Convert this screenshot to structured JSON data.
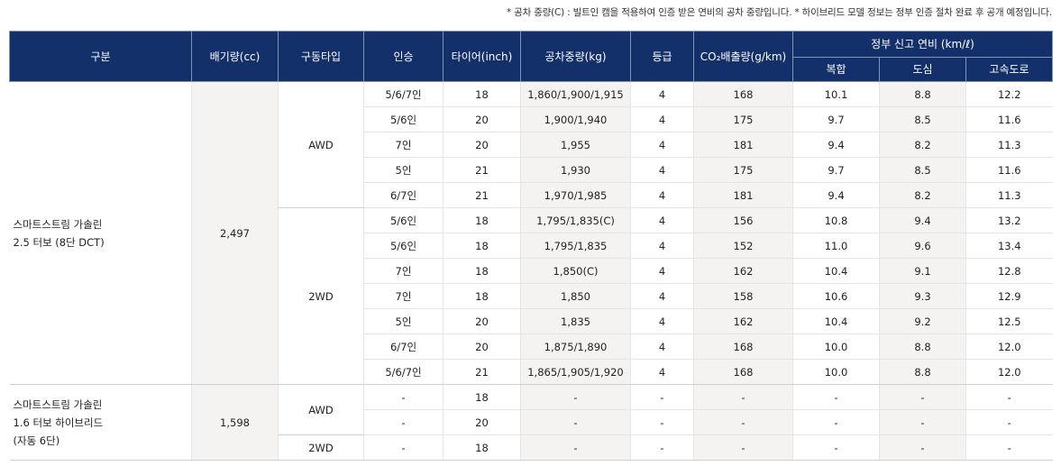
{
  "note": "* 공차 중량(C) : 빌트인 캠을 적용하여 인증 받은 연비의 공차 중량입니다. * 하이브리드 모델 정보는 정부 인증 절차 완료 후 공개 예정입니다.",
  "colors": {
    "header_bg": "#13306a",
    "shaded_column": "#f5f3f1"
  },
  "headers": {
    "category": "구분",
    "displacement": "배기량(cc)",
    "drive": "구동타입",
    "seats": "인승",
    "tire": "타이어(inch)",
    "weight": "공차중량(kg)",
    "grade": "등급",
    "co2": "CO₂배출량(g/km)",
    "fuel_group": "정부 신고 연비 (km/ℓ)",
    "combined": "복합",
    "city": "도심",
    "highway": "고속도로"
  },
  "groups": [
    {
      "type_lines": [
        "스마트스트림 가솔린",
        "2.5 터보 (8단 DCT)"
      ],
      "displacement": "2,497",
      "drives": [
        {
          "drive": "AWD",
          "rows": [
            [
              "5/6/7인",
              "18",
              "1,860/1,900/1,915",
              "4",
              "168",
              "10.1",
              "8.8",
              "12.2"
            ],
            [
              "5/6인",
              "20",
              "1,900/1,940",
              "4",
              "175",
              "9.7",
              "8.5",
              "11.6"
            ],
            [
              "7인",
              "20",
              "1,955",
              "4",
              "181",
              "9.4",
              "8.2",
              "11.3"
            ],
            [
              "5인",
              "21",
              "1,930",
              "4",
              "175",
              "9.7",
              "8.5",
              "11.6"
            ],
            [
              "6/7인",
              "21",
              "1,970/1,985",
              "4",
              "181",
              "9.4",
              "8.2",
              "11.3"
            ]
          ]
        },
        {
          "drive": "2WD",
          "rows": [
            [
              "5/6인",
              "18",
              "1,795/1,835(C)",
              "4",
              "156",
              "10.8",
              "9.4",
              "13.2"
            ],
            [
              "5/6인",
              "18",
              "1,795/1,835",
              "4",
              "152",
              "11.0",
              "9.6",
              "13.4"
            ],
            [
              "7인",
              "18",
              "1,850(C)",
              "4",
              "162",
              "10.4",
              "9.1",
              "12.8"
            ],
            [
              "7인",
              "18",
              "1,850",
              "4",
              "158",
              "10.6",
              "9.3",
              "12.9"
            ],
            [
              "5인",
              "20",
              "1,835",
              "4",
              "162",
              "10.4",
              "9.2",
              "12.5"
            ],
            [
              "6/7인",
              "20",
              "1,875/1,890",
              "4",
              "168",
              "10.0",
              "8.8",
              "12.0"
            ],
            [
              "5/6/7인",
              "21",
              "1,865/1,905/1,920",
              "4",
              "168",
              "10.0",
              "8.8",
              "12.0"
            ]
          ]
        }
      ]
    },
    {
      "type_lines": [
        "스마트스트림 가솔린",
        "1.6 터보 하이브리드",
        "(자동 6단)"
      ],
      "displacement": "1,598",
      "drives": [
        {
          "drive": "AWD",
          "rows": [
            [
              "-",
              "18",
              "-",
              "-",
              "-",
              "-",
              "-",
              "-"
            ],
            [
              "-",
              "20",
              "-",
              "-",
              "-",
              "-",
              "-",
              "-"
            ]
          ]
        },
        {
          "drive": "2WD",
          "rows": [
            [
              "-",
              "18",
              "-",
              "-",
              "-",
              "-",
              "-",
              "-"
            ]
          ]
        }
      ]
    }
  ]
}
